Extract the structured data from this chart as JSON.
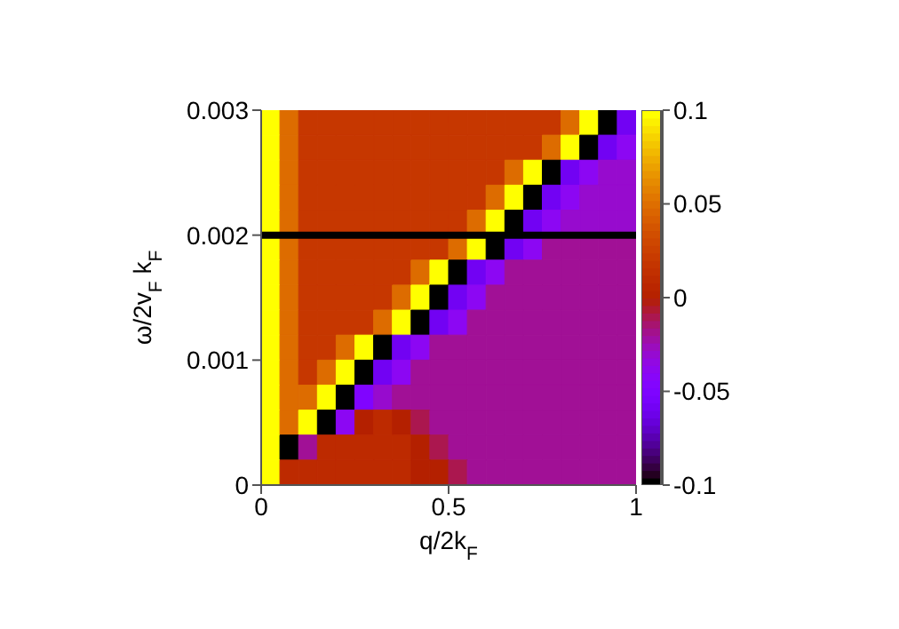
{
  "chart_data": {
    "type": "heatmap",
    "xlabel": "q/2k$_{F}$",
    "ylabel": "ω/2v$_{F}$ k$_{F}$",
    "x": [
      0.025,
      0.075,
      0.125,
      0.175,
      0.225,
      0.275,
      0.325,
      0.375,
      0.425,
      0.475,
      0.525,
      0.575,
      0.625,
      0.675,
      0.725,
      0.775,
      0.825,
      0.875,
      0.925,
      0.975
    ],
    "y": [
      0.0029,
      0.0027,
      0.0025,
      0.0023,
      0.0021,
      0.0019,
      0.0017,
      0.0015,
      0.0013,
      0.0011,
      0.0009,
      0.0007,
      0.0005,
      0.0003,
      0.0001
    ],
    "xlim": [
      0,
      1
    ],
    "xticks": [
      0,
      0.5,
      1
    ],
    "ylim": [
      0,
      0.003
    ],
    "yticks": [
      0,
      0.001,
      0.002,
      0.003
    ],
    "clim": [
      -0.1,
      0.1
    ],
    "cticks": [
      -0.1,
      -0.05,
      0,
      0.05,
      0.1
    ],
    "cells": [
      [
        0.1,
        0.05,
        0.02,
        0.02,
        0.02,
        0.02,
        0.02,
        0.02,
        0.02,
        0.02,
        0.02,
        0.02,
        0.02,
        0.02,
        0.02,
        0.02,
        0.05,
        0.1,
        -0.1,
        -0.06
      ],
      [
        0.1,
        0.05,
        0.02,
        0.02,
        0.02,
        0.02,
        0.02,
        0.02,
        0.02,
        0.02,
        0.02,
        0.02,
        0.02,
        0.02,
        0.02,
        0.05,
        0.1,
        -0.1,
        -0.06,
        -0.04
      ],
      [
        0.1,
        0.05,
        0.02,
        0.02,
        0.02,
        0.02,
        0.02,
        0.02,
        0.02,
        0.02,
        0.02,
        0.02,
        0.02,
        0.05,
        0.1,
        -0.1,
        -0.06,
        -0.04,
        -0.03,
        -0.03
      ],
      [
        0.1,
        0.05,
        0.02,
        0.02,
        0.02,
        0.02,
        0.02,
        0.02,
        0.02,
        0.02,
        0.02,
        0.02,
        0.05,
        0.1,
        -0.1,
        -0.06,
        -0.04,
        -0.03,
        -0.03,
        -0.03
      ],
      [
        0.1,
        0.05,
        0.02,
        0.02,
        0.02,
        0.02,
        0.02,
        0.02,
        0.02,
        0.02,
        0.02,
        0.05,
        0.1,
        -0.1,
        -0.06,
        -0.04,
        -0.03,
        -0.03,
        -0.03,
        -0.03
      ],
      [
        0.1,
        0.05,
        0.02,
        0.02,
        0.02,
        0.02,
        0.02,
        0.02,
        0.02,
        0.02,
        0.05,
        0.1,
        -0.1,
        -0.06,
        -0.04,
        -0.02,
        -0.02,
        -0.02,
        -0.02,
        -0.02
      ],
      [
        0.1,
        0.05,
        0.02,
        0.02,
        0.02,
        0.02,
        0.02,
        0.02,
        0.05,
        0.1,
        -0.1,
        -0.06,
        -0.04,
        -0.02,
        -0.02,
        -0.02,
        -0.02,
        -0.02,
        -0.02,
        -0.02
      ],
      [
        0.1,
        0.05,
        0.02,
        0.02,
        0.02,
        0.02,
        0.02,
        0.05,
        0.1,
        -0.1,
        -0.06,
        -0.04,
        -0.02,
        -0.02,
        -0.02,
        -0.02,
        -0.02,
        -0.02,
        -0.02,
        -0.02
      ],
      [
        0.1,
        0.05,
        0.02,
        0.02,
        0.02,
        0.02,
        0.05,
        0.1,
        -0.1,
        -0.06,
        -0.04,
        -0.02,
        -0.02,
        -0.02,
        -0.02,
        -0.02,
        -0.02,
        -0.02,
        -0.02,
        -0.02
      ],
      [
        0.1,
        0.05,
        0.02,
        0.02,
        0.05,
        0.1,
        -0.1,
        -0.06,
        -0.04,
        -0.02,
        -0.02,
        -0.02,
        -0.02,
        -0.02,
        -0.02,
        -0.02,
        -0.02,
        -0.02,
        -0.02,
        -0.02
      ],
      [
        0.1,
        0.05,
        0.02,
        0.05,
        0.1,
        -0.1,
        -0.06,
        -0.04,
        -0.02,
        -0.02,
        -0.02,
        -0.02,
        -0.02,
        -0.02,
        -0.02,
        -0.02,
        -0.02,
        -0.02,
        -0.02,
        -0.02
      ],
      [
        0.1,
        0.05,
        0.05,
        0.1,
        -0.1,
        -0.05,
        -0.03,
        -0.02,
        -0.02,
        -0.02,
        -0.02,
        -0.02,
        -0.02,
        -0.02,
        -0.02,
        -0.02,
        -0.02,
        -0.02,
        -0.02,
        -0.02
      ],
      [
        0.1,
        0.05,
        0.1,
        -0.1,
        -0.04,
        0,
        0.01,
        0,
        -0.01,
        -0.02,
        -0.02,
        -0.02,
        -0.02,
        -0.02,
        -0.02,
        -0.02,
        -0.02,
        -0.02,
        -0.02,
        -0.02
      ],
      [
        0.1,
        -0.1,
        -0.02,
        0.01,
        0.01,
        0.01,
        0.01,
        0.01,
        0,
        -0.01,
        -0.02,
        -0.02,
        -0.02,
        -0.02,
        -0.02,
        -0.02,
        -0.02,
        -0.02,
        -0.02,
        -0.02
      ],
      [
        0.1,
        0.01,
        0.01,
        0.01,
        0.01,
        0.01,
        0.01,
        0.01,
        0,
        0,
        -0.01,
        -0.02,
        -0.02,
        -0.02,
        -0.02,
        -0.02,
        -0.02,
        -0.02,
        -0.02,
        -0.02
      ]
    ],
    "ref_lines": [
      {
        "axis": "y",
        "value": 0.002,
        "color": "#000000"
      }
    ]
  }
}
